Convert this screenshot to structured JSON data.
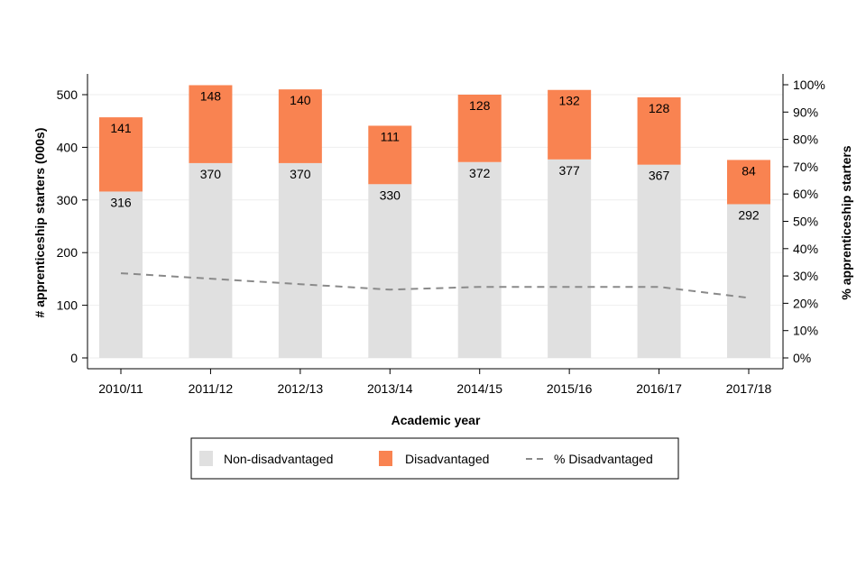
{
  "chart_data": {
    "type": "bar",
    "stacked": true,
    "categories": [
      "2010/11",
      "2011/12",
      "2012/13",
      "2013/14",
      "2014/15",
      "2015/16",
      "2016/17",
      "2017/18"
    ],
    "series": [
      {
        "name": "Non-disadvantaged",
        "values": [
          316,
          370,
          370,
          330,
          372,
          377,
          367,
          292
        ],
        "color": "#e0e0e0"
      },
      {
        "name": "Disadvantaged",
        "values": [
          141,
          148,
          140,
          111,
          128,
          132,
          128,
          84
        ],
        "color": "#f98351"
      }
    ],
    "line_series": {
      "name": "% Disadvantaged",
      "axis": "right",
      "style": "dashed",
      "color": "#8a8a8a",
      "values": [
        31,
        29,
        27,
        25,
        26,
        26,
        26,
        22
      ]
    },
    "xlabel": "Academic year",
    "ylabel": "# apprenticeship starters (000s)",
    "ylabel_right": "% apprenticeship starters",
    "ylim": [
      0,
      500
    ],
    "yticks": [
      0,
      100,
      200,
      300,
      400,
      500
    ],
    "ylim_right": [
      0,
      100
    ],
    "yticks_right": [
      "0%",
      "10%",
      "20%",
      "30%",
      "40%",
      "50%",
      "60%",
      "70%",
      "80%",
      "90%",
      "100%"
    ],
    "grid": true,
    "legend_position": "bottom"
  }
}
